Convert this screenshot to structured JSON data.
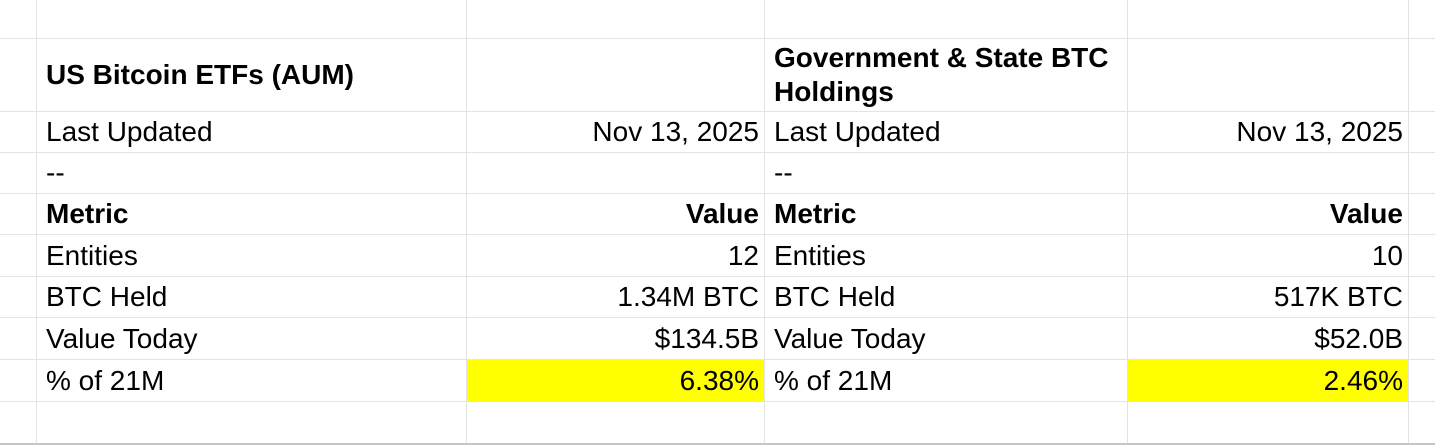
{
  "colors": {
    "highlight": "#ffff00",
    "gridline": "#e3e3e3",
    "bottom_edge": "#c6c6c6",
    "text": "#000000",
    "background": "#ffffff"
  },
  "left_table": {
    "title": "US Bitcoin ETFs (AUM)",
    "last_updated": {
      "label": "Last Updated",
      "value": "Nov 13, 2025"
    },
    "separator": "--",
    "columns": {
      "metric": "Metric",
      "value": "Value"
    },
    "rows": [
      {
        "metric": "Entities",
        "value": "12",
        "highlight": false
      },
      {
        "metric": "BTC Held",
        "value": "1.34M BTC",
        "highlight": false
      },
      {
        "metric": "Value Today",
        "value": "$134.5B",
        "highlight": false
      },
      {
        "metric": "% of 21M",
        "value": "6.38%",
        "highlight": true
      }
    ]
  },
  "right_table": {
    "title": "Government & State BTC\nHoldings",
    "last_updated": {
      "label": "Last Updated",
      "value": "Nov 13, 2025"
    },
    "separator": "--",
    "columns": {
      "metric": "Metric",
      "value": "Value"
    },
    "rows": [
      {
        "metric": "Entities",
        "value": "10",
        "highlight": false
      },
      {
        "metric": "BTC Held",
        "value": "517K BTC",
        "highlight": false
      },
      {
        "metric": "Value Today",
        "value": "$52.0B",
        "highlight": false
      },
      {
        "metric": "% of 21M",
        "value": "2.46%",
        "highlight": true
      }
    ]
  }
}
